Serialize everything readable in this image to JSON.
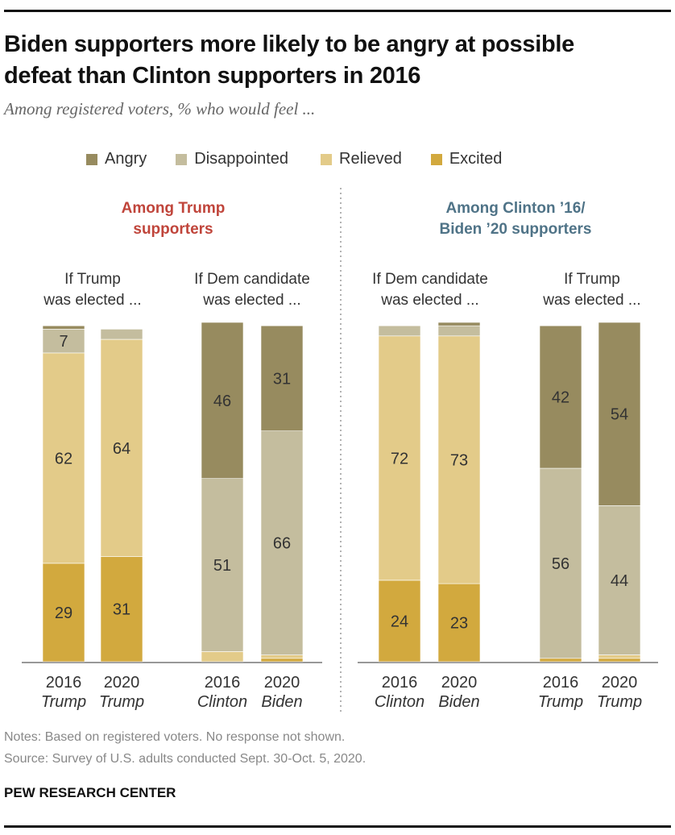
{
  "header": {
    "title_line1": "Biden supporters more likely to be angry at possible",
    "title_line2": "defeat than Clinton supporters in 2016",
    "subtitle": "Among registered voters, % who would feel ..."
  },
  "colors": {
    "angry": "#978B5F",
    "disappointed": "#C4BD9E",
    "relieved": "#E3CB89",
    "excited": "#D2A93E",
    "trump_group_title": "#C0453B",
    "dem_group_title": "#4F7387",
    "axis": "#777777"
  },
  "footer": {
    "note": "Notes: Based on registered voters. No response not shown.",
    "source": "Source: Survey of U.S. adults conducted Sept. 30-Oct. 5, 2020.",
    "brand": "PEW RESEARCH CENTER"
  },
  "chart_data": {
    "type": "bar",
    "stacked": true,
    "title": "Biden supporters more likely to be angry at possible defeat than Clinton supporters in 2016",
    "subtitle": "Among registered voters, % who would feel ...",
    "legend": [
      "Angry",
      "Disappointed",
      "Relieved",
      "Excited"
    ],
    "legend_placement": "top",
    "ylim": [
      0,
      100
    ],
    "groups": [
      {
        "title_line1": "Among Trump",
        "title_line2": "supporters",
        "title_color_key": "trump_group_title",
        "panels": [
          {
            "heading_line1": "If Trump",
            "heading_line2": "was elected ...",
            "bars": [
              {
                "year": "2016",
                "candidate": "Trump",
                "values": {
                  "Angry": 1,
                  "Disappointed": 7,
                  "Relieved": 62,
                  "Excited": 29
                },
                "labels": {
                  "Disappointed": "7",
                  "Relieved": "62",
                  "Excited": "29"
                }
              },
              {
                "year": "2020",
                "candidate": "Trump",
                "values": {
                  "Angry": 0,
                  "Disappointed": 3,
                  "Relieved": 64,
                  "Excited": 31
                },
                "labels": {
                  "Relieved": "64",
                  "Excited": "31"
                }
              }
            ]
          },
          {
            "heading_line1": "If Dem candidate",
            "heading_line2": "was elected ...",
            "bars": [
              {
                "year": "2016",
                "candidate": "Clinton",
                "values": {
                  "Angry": 46,
                  "Disappointed": 51,
                  "Relieved": 3,
                  "Excited": 0
                },
                "labels": {
                  "Angry": "46",
                  "Disappointed": "51"
                }
              },
              {
                "year": "2020",
                "candidate": "Biden",
                "values": {
                  "Angry": 31,
                  "Disappointed": 66,
                  "Relieved": 1,
                  "Excited": 1
                },
                "labels": {
                  "Angry": "31",
                  "Disappointed": "66"
                }
              }
            ]
          }
        ]
      },
      {
        "title_line1": "Among Clinton ’16/",
        "title_line2": "Biden ’20 supporters",
        "title_color_key": "dem_group_title",
        "panels": [
          {
            "heading_line1": "If Dem candidate",
            "heading_line2": "was elected ...",
            "bars": [
              {
                "year": "2016",
                "candidate": "Clinton",
                "values": {
                  "Angry": 0,
                  "Disappointed": 3,
                  "Relieved": 72,
                  "Excited": 24
                },
                "labels": {
                  "Relieved": "72",
                  "Excited": "24"
                }
              },
              {
                "year": "2020",
                "candidate": "Biden",
                "values": {
                  "Angry": 1,
                  "Disappointed": 3,
                  "Relieved": 73,
                  "Excited": 23
                },
                "labels": {
                  "Relieved": "73",
                  "Excited": "23"
                }
              }
            ]
          },
          {
            "heading_line1": "If Trump",
            "heading_line2": "was elected ...",
            "bars": [
              {
                "year": "2016",
                "candidate": "Trump",
                "values": {
                  "Angry": 42,
                  "Disappointed": 56,
                  "Relieved": 0,
                  "Excited": 1
                },
                "labels": {
                  "Angry": "42",
                  "Disappointed": "56"
                }
              },
              {
                "year": "2020",
                "candidate": "Trump",
                "values": {
                  "Angry": 54,
                  "Disappointed": 44,
                  "Relieved": 1,
                  "Excited": 1
                },
                "labels": {
                  "Angry": "54",
                  "Disappointed": "44"
                }
              }
            ]
          }
        ]
      }
    ]
  }
}
